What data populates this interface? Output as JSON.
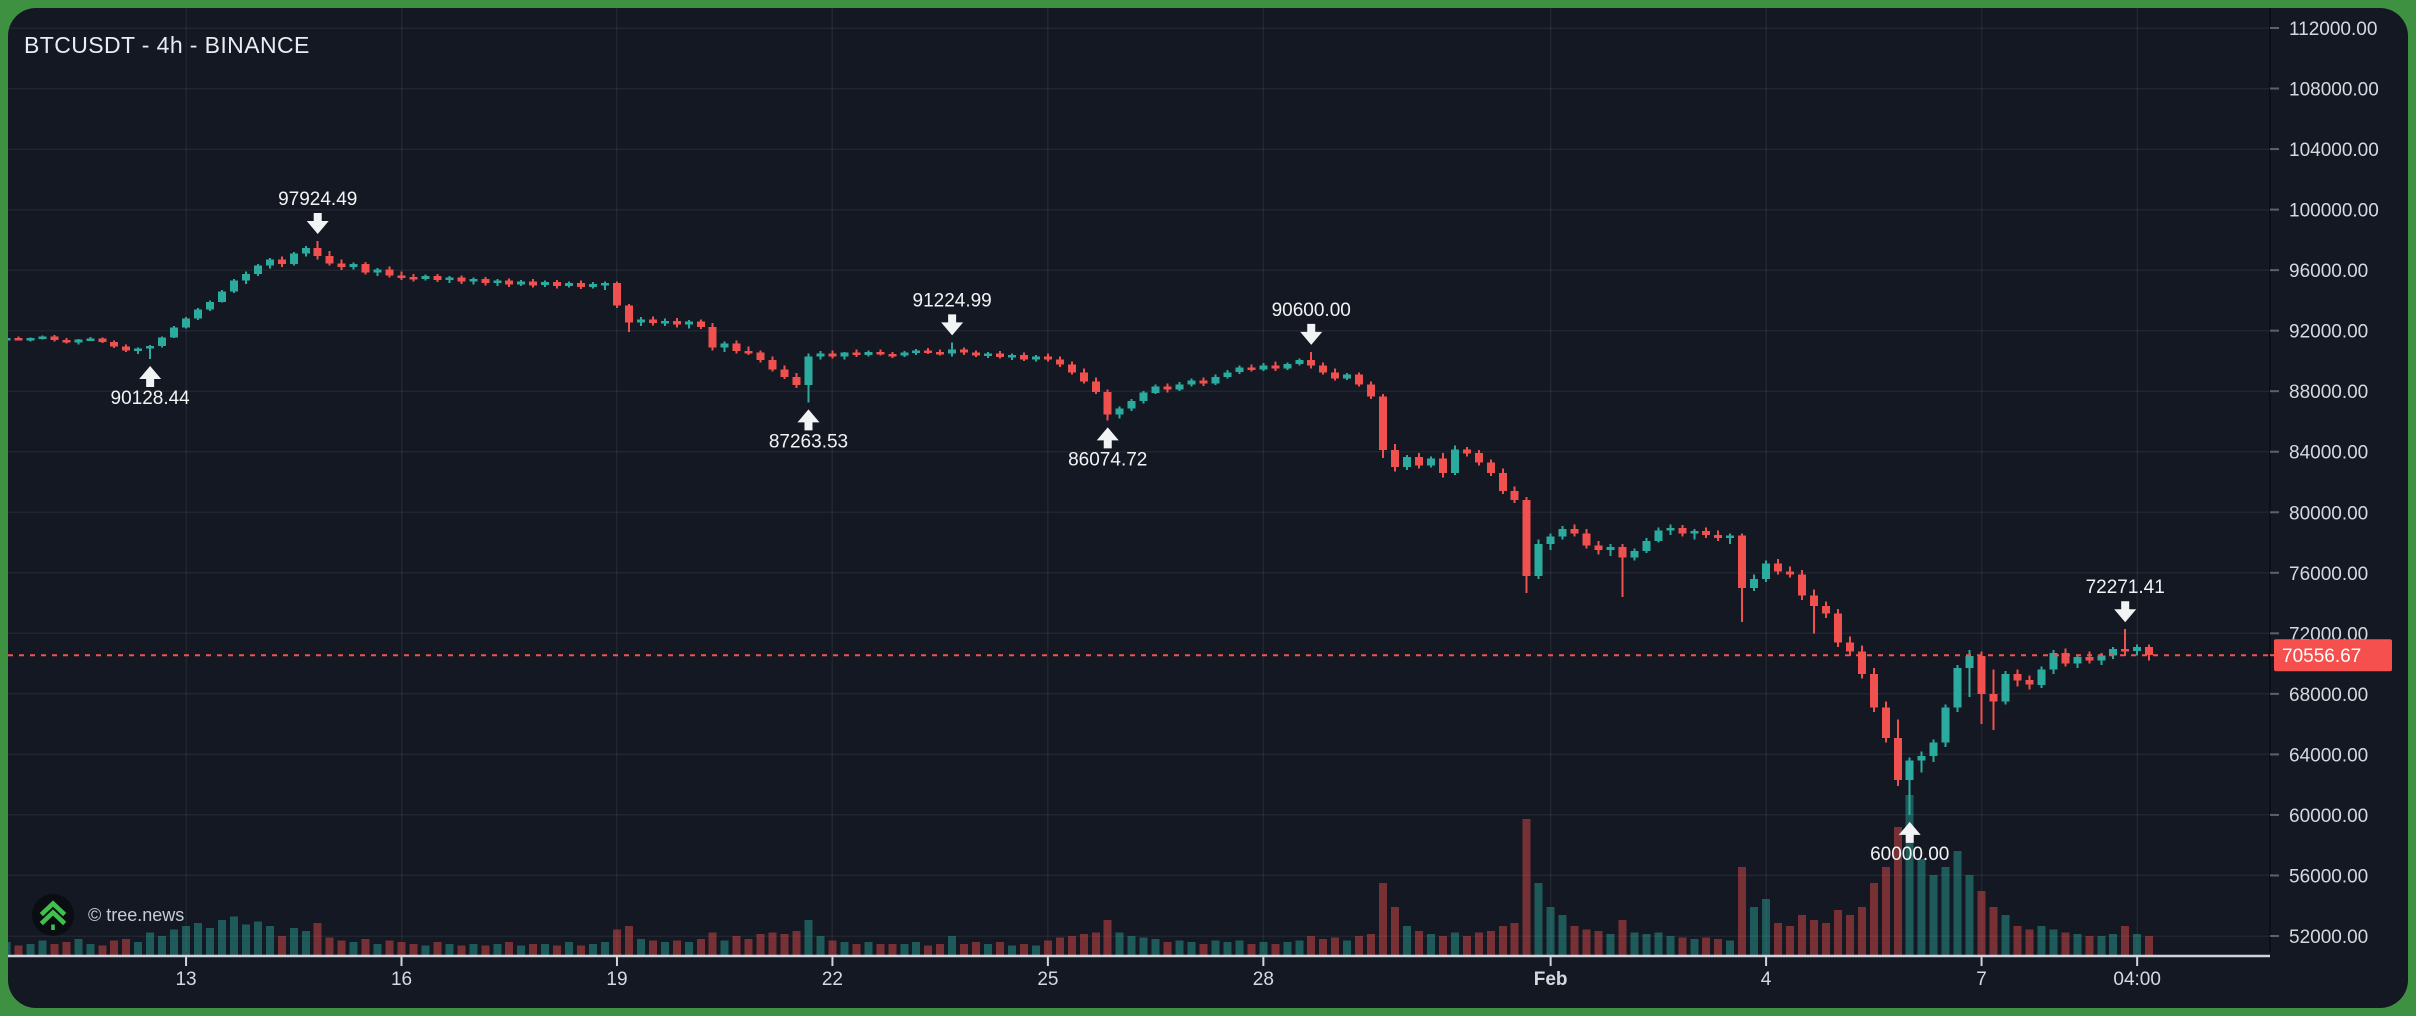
{
  "header": {
    "title": "BTCUSDT - 4h - BINANCE"
  },
  "watermark": {
    "copyright": "© tree.news",
    "logo": "tree-news-logo-icon"
  },
  "colors": {
    "background": "#141822",
    "frame": "#3f9142",
    "up": "#2aab9d",
    "down": "#f0504e",
    "volume_up": "rgba(42,171,157,0.45)",
    "volume_down": "rgba(240,80,78,0.45)",
    "grid": "rgba(170,180,200,0.09)",
    "axis_text": "#d6d9e0",
    "axis_tick": "#5a6070",
    "separator": "#d1d4dc",
    "axis_border": "#0c0f16",
    "dotted_line": "#f5504e",
    "last_price_bg": "#f5504e",
    "last_price_text": "#ffffff",
    "marker": "#f2f3f5",
    "logo_green": "#3fc24c",
    "logo_bg": "#0a0e13"
  },
  "chart_data": {
    "type": "candlestick",
    "symbol": "BTCUSDT",
    "interval": "4h",
    "exchange": "BINANCE",
    "title": "BTCUSDT - 4h - BINANCE",
    "grid": true,
    "y_axis": {
      "side": "right",
      "min": 52000,
      "max": 112000,
      "step": 4000,
      "ticks": [
        112000,
        108000,
        104000,
        100000,
        96000,
        92000,
        88000,
        84000,
        80000,
        76000,
        72000,
        68000,
        64000,
        60000,
        56000,
        52000
      ]
    },
    "x_axis": {
      "ticks": [
        {
          "label": "13",
          "index": 15,
          "bold": false
        },
        {
          "label": "16",
          "index": 33,
          "bold": false
        },
        {
          "label": "19",
          "index": 51,
          "bold": false
        },
        {
          "label": "22",
          "index": 69,
          "bold": false
        },
        {
          "label": "25",
          "index": 87,
          "bold": false
        },
        {
          "label": "28",
          "index": 105,
          "bold": false
        },
        {
          "label": "Feb",
          "index": 129,
          "bold": true
        },
        {
          "label": "4",
          "index": 147,
          "bold": false
        },
        {
          "label": "7",
          "index": 165,
          "bold": false
        },
        {
          "label": "04:00",
          "index": 178,
          "bold": false
        }
      ]
    },
    "last_price": {
      "value": 70556.67,
      "label": "70556.67"
    },
    "markers": [
      {
        "label": "90128.44",
        "value": 90128.44,
        "index": 12,
        "direction": "up"
      },
      {
        "label": "97924.49",
        "value": 97924.49,
        "index": 26,
        "direction": "down"
      },
      {
        "label": "87263.53",
        "value": 87263.53,
        "index": 67,
        "direction": "up"
      },
      {
        "label": "91224.99",
        "value": 91224.99,
        "index": 79,
        "direction": "down"
      },
      {
        "label": "86074.72",
        "value": 86074.72,
        "index": 92,
        "direction": "up"
      },
      {
        "label": "90600.00",
        "value": 90600.0,
        "index": 109,
        "direction": "down"
      },
      {
        "label": "60000.00",
        "value": 60000.0,
        "index": 159,
        "direction": "up"
      },
      {
        "label": "72271.41",
        "value": 72271.41,
        "index": 177,
        "direction": "down"
      }
    ],
    "candles": [
      [
        91450,
        91620,
        91300,
        91520,
        0.08
      ],
      [
        91520,
        91600,
        91350,
        91380,
        0.06
      ],
      [
        91380,
        91560,
        91300,
        91500,
        0.07
      ],
      [
        91500,
        91680,
        91420,
        91620,
        0.09
      ],
      [
        91620,
        91700,
        91300,
        91380,
        0.07
      ],
      [
        91380,
        91500,
        91150,
        91230,
        0.08
      ],
      [
        91230,
        91450,
        91100,
        91400,
        0.1
      ],
      [
        91400,
        91580,
        91320,
        91480,
        0.07
      ],
      [
        91480,
        91560,
        91200,
        91260,
        0.06
      ],
      [
        91260,
        91350,
        90850,
        90950,
        0.09
      ],
      [
        90950,
        91100,
        90600,
        90700,
        0.1
      ],
      [
        90700,
        90900,
        90450,
        90820,
        0.08
      ],
      [
        90820,
        91050,
        90128.44,
        90980,
        0.14
      ],
      [
        90980,
        91600,
        90900,
        91550,
        0.12
      ],
      [
        91550,
        92300,
        91500,
        92200,
        0.16
      ],
      [
        92200,
        92900,
        92150,
        92800,
        0.18
      ],
      [
        92800,
        93500,
        92700,
        93400,
        0.2
      ],
      [
        93400,
        94000,
        93300,
        93900,
        0.17
      ],
      [
        93900,
        94700,
        93850,
        94600,
        0.22
      ],
      [
        94600,
        95400,
        94500,
        95300,
        0.24
      ],
      [
        95300,
        95900,
        95100,
        95750,
        0.19
      ],
      [
        95750,
        96400,
        95600,
        96300,
        0.21
      ],
      [
        96300,
        96800,
        96100,
        96700,
        0.18
      ],
      [
        96700,
        96900,
        96200,
        96400,
        0.12
      ],
      [
        96400,
        97200,
        96300,
        97100,
        0.17
      ],
      [
        97100,
        97600,
        96900,
        97450,
        0.15
      ],
      [
        97450,
        97924.49,
        96700,
        96950,
        0.2
      ],
      [
        96950,
        97250,
        96300,
        96450,
        0.11
      ],
      [
        96450,
        96700,
        96000,
        96200,
        0.09
      ],
      [
        96200,
        96500,
        96050,
        96400,
        0.08
      ],
      [
        96400,
        96550,
        95700,
        95850,
        0.1
      ],
      [
        95850,
        96150,
        95600,
        96050,
        0.07
      ],
      [
        96050,
        96250,
        95500,
        95650,
        0.09
      ],
      [
        95650,
        95900,
        95350,
        95550,
        0.08
      ],
      [
        95550,
        95750,
        95250,
        95400,
        0.07
      ],
      [
        95400,
        95700,
        95300,
        95600,
        0.06
      ],
      [
        95600,
        95750,
        95200,
        95350,
        0.08
      ],
      [
        95350,
        95600,
        95150,
        95500,
        0.07
      ],
      [
        95500,
        95650,
        95100,
        95250,
        0.06
      ],
      [
        95250,
        95500,
        95050,
        95400,
        0.07
      ],
      [
        95400,
        95550,
        95000,
        95150,
        0.06
      ],
      [
        95150,
        95400,
        94950,
        95300,
        0.07
      ],
      [
        95300,
        95450,
        94900,
        95050,
        0.08
      ],
      [
        95050,
        95350,
        94950,
        95250,
        0.06
      ],
      [
        95250,
        95400,
        94850,
        95000,
        0.07
      ],
      [
        95000,
        95300,
        94900,
        95200,
        0.07
      ],
      [
        95200,
        95350,
        94800,
        94950,
        0.06
      ],
      [
        94950,
        95250,
        94850,
        95150,
        0.08
      ],
      [
        95150,
        95300,
        94750,
        94900,
        0.06
      ],
      [
        94900,
        95200,
        94800,
        95100,
        0.07
      ],
      [
        95100,
        95250,
        94700,
        95150,
        0.08
      ],
      [
        95150,
        95250,
        93500,
        93650,
        0.16
      ],
      [
        93650,
        93750,
        91900,
        92550,
        0.18
      ],
      [
        92550,
        92900,
        92300,
        92750,
        0.1
      ],
      [
        92750,
        92950,
        92350,
        92500,
        0.09
      ],
      [
        92500,
        92800,
        92300,
        92650,
        0.08
      ],
      [
        92650,
        92850,
        92200,
        92400,
        0.09
      ],
      [
        92400,
        92700,
        92150,
        92600,
        0.08
      ],
      [
        92600,
        92750,
        92100,
        92250,
        0.1
      ],
      [
        92250,
        92500,
        90700,
        90900,
        0.14
      ],
      [
        90900,
        91300,
        90600,
        91150,
        0.09
      ],
      [
        91150,
        91350,
        90500,
        90650,
        0.12
      ],
      [
        90650,
        90950,
        90400,
        90550,
        0.1
      ],
      [
        90550,
        90700,
        89900,
        90050,
        0.13
      ],
      [
        90050,
        90300,
        89300,
        89450,
        0.14
      ],
      [
        89450,
        89700,
        88800,
        88950,
        0.13
      ],
      [
        88950,
        89200,
        88200,
        88400,
        0.15
      ],
      [
        88400,
        90500,
        87263.53,
        90300,
        0.22
      ],
      [
        90300,
        90650,
        90100,
        90500,
        0.12
      ],
      [
        90500,
        90700,
        90150,
        90300,
        0.09
      ],
      [
        90300,
        90600,
        90100,
        90550,
        0.08
      ],
      [
        90550,
        90750,
        90250,
        90400,
        0.07
      ],
      [
        90400,
        90700,
        90300,
        90600,
        0.08
      ],
      [
        90600,
        90750,
        90350,
        90450,
        0.07
      ],
      [
        90450,
        90600,
        90200,
        90350,
        0.07
      ],
      [
        90350,
        90650,
        90250,
        90550,
        0.07
      ],
      [
        90550,
        90800,
        90400,
        90700,
        0.08
      ],
      [
        90700,
        90850,
        90450,
        90600,
        0.06
      ],
      [
        90600,
        90750,
        90350,
        90500,
        0.07
      ],
      [
        90500,
        91224.99,
        90300,
        90750,
        0.12
      ],
      [
        90750,
        90900,
        90400,
        90550,
        0.07
      ],
      [
        90550,
        90700,
        90250,
        90350,
        0.08
      ],
      [
        90350,
        90600,
        90200,
        90500,
        0.07
      ],
      [
        90500,
        90650,
        90150,
        90250,
        0.08
      ],
      [
        90250,
        90500,
        90050,
        90400,
        0.06
      ],
      [
        90400,
        90550,
        90000,
        90100,
        0.07
      ],
      [
        90100,
        90400,
        89950,
        90300,
        0.06
      ],
      [
        90300,
        90500,
        89950,
        90100,
        0.09
      ],
      [
        90100,
        90300,
        89600,
        89750,
        0.11
      ],
      [
        89750,
        89950,
        89100,
        89250,
        0.12
      ],
      [
        89250,
        89500,
        88500,
        88650,
        0.13
      ],
      [
        88650,
        88900,
        87800,
        87950,
        0.14
      ],
      [
        87950,
        88100,
        86074.72,
        86450,
        0.22
      ],
      [
        86450,
        87000,
        86200,
        86850,
        0.14
      ],
      [
        86850,
        87500,
        86700,
        87350,
        0.12
      ],
      [
        87350,
        88000,
        87200,
        87900,
        0.11
      ],
      [
        87900,
        88450,
        87800,
        88300,
        0.1
      ],
      [
        88300,
        88500,
        87900,
        88100,
        0.08
      ],
      [
        88100,
        88600,
        88000,
        88450,
        0.09
      ],
      [
        88450,
        88850,
        88300,
        88700,
        0.08
      ],
      [
        88700,
        88900,
        88350,
        88500,
        0.07
      ],
      [
        88500,
        89100,
        88400,
        88950,
        0.09
      ],
      [
        88950,
        89400,
        88850,
        89250,
        0.08
      ],
      [
        89250,
        89700,
        89150,
        89550,
        0.09
      ],
      [
        89550,
        89750,
        89300,
        89450,
        0.07
      ],
      [
        89450,
        89850,
        89350,
        89700,
        0.08
      ],
      [
        89700,
        89950,
        89350,
        89500,
        0.07
      ],
      [
        89500,
        89900,
        89400,
        89800,
        0.08
      ],
      [
        89800,
        90150,
        89700,
        90050,
        0.09
      ],
      [
        90050,
        90600.0,
        89500,
        89700,
        0.12
      ],
      [
        89700,
        89900,
        89100,
        89250,
        0.1
      ],
      [
        89250,
        89500,
        88700,
        88850,
        0.11
      ],
      [
        88850,
        89200,
        88750,
        89100,
        0.09
      ],
      [
        89100,
        89250,
        88300,
        88450,
        0.12
      ],
      [
        88450,
        88650,
        87500,
        87650,
        0.13
      ],
      [
        87650,
        87800,
        83600,
        84100,
        0.45
      ],
      [
        84100,
        84500,
        82700,
        83000,
        0.3
      ],
      [
        83000,
        83800,
        82800,
        83650,
        0.18
      ],
      [
        83650,
        83900,
        82900,
        83100,
        0.15
      ],
      [
        83100,
        83700,
        82950,
        83550,
        0.13
      ],
      [
        83550,
        83900,
        82300,
        82600,
        0.12
      ],
      [
        82600,
        84400,
        82450,
        84150,
        0.14
      ],
      [
        84150,
        84300,
        83700,
        83900,
        0.12
      ],
      [
        83900,
        84100,
        83100,
        83300,
        0.14
      ],
      [
        83300,
        83500,
        82400,
        82600,
        0.15
      ],
      [
        82600,
        82900,
        81200,
        81400,
        0.18
      ],
      [
        81400,
        81700,
        80600,
        80800,
        0.2
      ],
      [
        80800,
        81000,
        74670,
        75800,
        0.85
      ],
      [
        75800,
        78200,
        75600,
        77900,
        0.45
      ],
      [
        77900,
        78600,
        77500,
        78400,
        0.3
      ],
      [
        78400,
        79100,
        78200,
        78900,
        0.25
      ],
      [
        78900,
        79200,
        78400,
        78600,
        0.18
      ],
      [
        78600,
        78900,
        77600,
        77800,
        0.16
      ],
      [
        77800,
        78100,
        77200,
        77500,
        0.15
      ],
      [
        77500,
        77900,
        77100,
        77700,
        0.13
      ],
      [
        77700,
        77900,
        74400,
        77000,
        0.22
      ],
      [
        77000,
        77600,
        76800,
        77450,
        0.14
      ],
      [
        77450,
        78300,
        77300,
        78100,
        0.13
      ],
      [
        78100,
        79000,
        78000,
        78800,
        0.14
      ],
      [
        78800,
        79200,
        78500,
        78950,
        0.12
      ],
      [
        78950,
        79150,
        78400,
        78600,
        0.11
      ],
      [
        78600,
        78900,
        78200,
        78750,
        0.1
      ],
      [
        78750,
        79000,
        78300,
        78500,
        0.11
      ],
      [
        78500,
        78800,
        78100,
        78300,
        0.1
      ],
      [
        78300,
        78600,
        77900,
        78450,
        0.09
      ],
      [
        78450,
        78600,
        72760,
        75000,
        0.55
      ],
      [
        75000,
        75900,
        74800,
        75600,
        0.3
      ],
      [
        75600,
        76800,
        75400,
        76600,
        0.35
      ],
      [
        76600,
        76900,
        75900,
        76100,
        0.2
      ],
      [
        76100,
        76400,
        75700,
        75900,
        0.18
      ],
      [
        75900,
        76200,
        74200,
        74500,
        0.25
      ],
      [
        74500,
        74900,
        72000,
        73800,
        0.22
      ],
      [
        73800,
        74100,
        73000,
        73300,
        0.2
      ],
      [
        73300,
        73600,
        71100,
        71400,
        0.28
      ],
      [
        71400,
        71800,
        70500,
        70800,
        0.25
      ],
      [
        70800,
        71200,
        69000,
        69300,
        0.3
      ],
      [
        69300,
        69700,
        66800,
        67100,
        0.45
      ],
      [
        67100,
        67500,
        64800,
        65100,
        0.55
      ],
      [
        65100,
        66300,
        61900,
        62300,
        0.8
      ],
      [
        62300,
        63800,
        60000.0,
        63600,
        1.0
      ],
      [
        63600,
        64200,
        62800,
        63900,
        0.6
      ],
      [
        63900,
        65000,
        63500,
        64800,
        0.5
      ],
      [
        64800,
        67300,
        64500,
        67100,
        0.55
      ],
      [
        67100,
        69900,
        66800,
        69700,
        0.65
      ],
      [
        69700,
        70900,
        67800,
        70500,
        0.5
      ],
      [
        70500,
        70800,
        66000,
        68000,
        0.4
      ],
      [
        68000,
        69600,
        65600,
        67500,
        0.3
      ],
      [
        67500,
        69500,
        67300,
        69300,
        0.25
      ],
      [
        69300,
        69600,
        68500,
        68900,
        0.18
      ],
      [
        68900,
        69200,
        68300,
        68600,
        0.16
      ],
      [
        68600,
        69800,
        68400,
        69600,
        0.18
      ],
      [
        69600,
        70900,
        69300,
        70700,
        0.16
      ],
      [
        70700,
        71000,
        69800,
        70000,
        0.14
      ],
      [
        70000,
        70600,
        69700,
        70450,
        0.13
      ],
      [
        70450,
        70800,
        70000,
        70200,
        0.12
      ],
      [
        70200,
        70700,
        69900,
        70550,
        0.12
      ],
      [
        70550,
        71100,
        70300,
        70950,
        0.13
      ],
      [
        70950,
        72271.41,
        70500,
        70850,
        0.18
      ],
      [
        70850,
        71250,
        70550,
        71100,
        0.13
      ],
      [
        71100,
        71250,
        70200,
        70556.67,
        0.12
      ]
    ]
  }
}
